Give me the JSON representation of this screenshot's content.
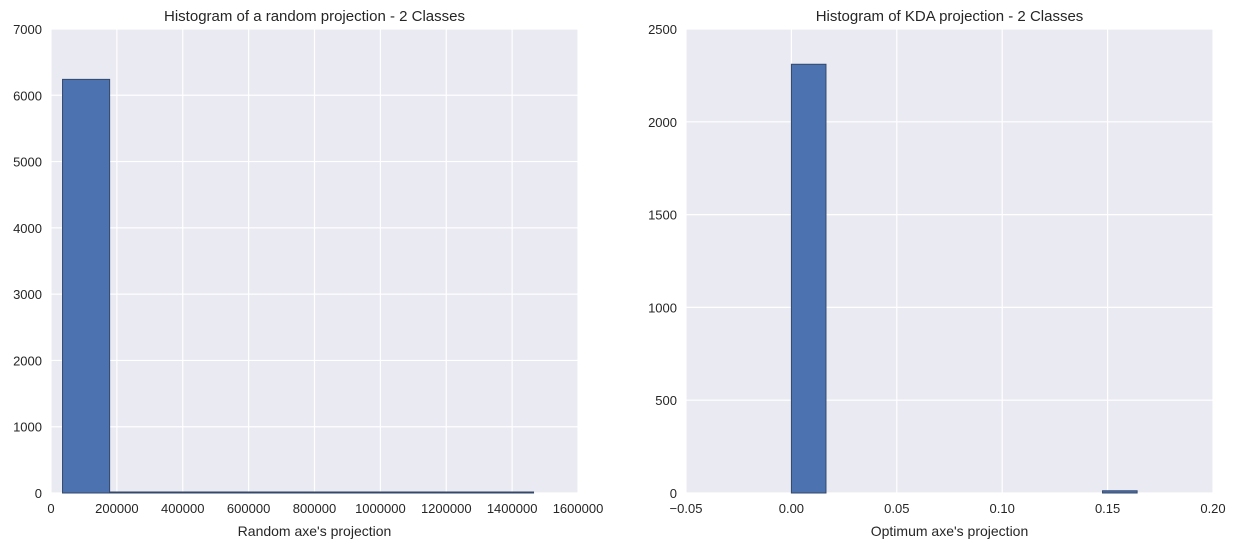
{
  "chart_data": [
    {
      "type": "bar",
      "title": "Histogram of a random projection - 2 Classes",
      "xlabel": "Random axe's projection",
      "ylabel": "",
      "xlim": [
        0,
        1600000
      ],
      "ylim": [
        0,
        7000
      ],
      "grid": true,
      "color": "#4c72b0",
      "xticks": [
        0,
        200000,
        400000,
        600000,
        800000,
        1000000,
        1200000,
        1400000,
        1600000
      ],
      "yticks": [
        0,
        1000,
        2000,
        3000,
        4000,
        5000,
        6000,
        7000
      ],
      "bins": [
        {
          "x0": 35000,
          "x1": 178000,
          "count": 6240
        },
        {
          "x0": 178000,
          "x1": 321000,
          "count": 5
        },
        {
          "x0": 321000,
          "x1": 464000,
          "count": 3
        },
        {
          "x0": 464000,
          "x1": 607000,
          "count": 2
        },
        {
          "x0": 607000,
          "x1": 750000,
          "count": 2
        },
        {
          "x0": 750000,
          "x1": 893000,
          "count": 1
        },
        {
          "x0": 893000,
          "x1": 1036000,
          "count": 1
        },
        {
          "x0": 1036000,
          "x1": 1179000,
          "count": 1
        },
        {
          "x0": 1179000,
          "x1": 1322000,
          "count": 1
        },
        {
          "x0": 1322000,
          "x1": 1465000,
          "count": 1
        }
      ]
    },
    {
      "type": "bar",
      "title": "Histogram of KDA projection - 2 Classes",
      "xlabel": "Optimum axe's projection",
      "ylabel": "",
      "xlim": [
        -0.05,
        0.2
      ],
      "ylim": [
        0,
        2500
      ],
      "grid": true,
      "color": "#4c72b0",
      "xticks": [
        -0.05,
        0.0,
        0.05,
        0.1,
        0.15,
        0.2
      ],
      "xtick_labels": [
        "−0.05",
        "0.00",
        "0.05",
        "0.10",
        "0.15",
        "0.20"
      ],
      "yticks": [
        0,
        500,
        1000,
        1500,
        2000,
        2500
      ],
      "bins": [
        {
          "x0": 0.0,
          "x1": 0.0164,
          "count": 2310
        },
        {
          "x0": 0.0164,
          "x1": 0.0328,
          "count": 0
        },
        {
          "x0": 0.0328,
          "x1": 0.0492,
          "count": 0
        },
        {
          "x0": 0.0492,
          "x1": 0.0656,
          "count": 0
        },
        {
          "x0": 0.0656,
          "x1": 0.082,
          "count": 0
        },
        {
          "x0": 0.082,
          "x1": 0.0984,
          "count": 0
        },
        {
          "x0": 0.0984,
          "x1": 0.1148,
          "count": 0
        },
        {
          "x0": 0.1148,
          "x1": 0.1312,
          "count": 0
        },
        {
          "x0": 0.1312,
          "x1": 0.1476,
          "count": 0
        },
        {
          "x0": 0.1476,
          "x1": 0.164,
          "count": 12
        }
      ]
    }
  ]
}
